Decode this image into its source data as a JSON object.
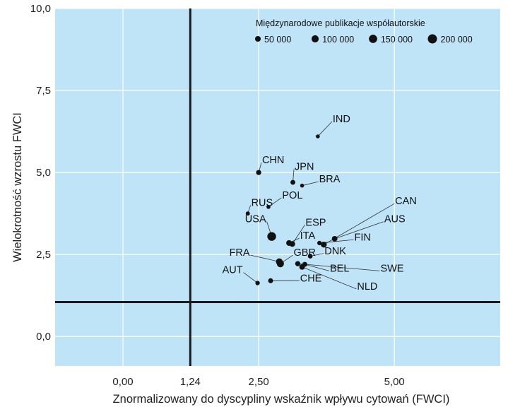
{
  "chart_data": {
    "type": "scatter",
    "title": "",
    "xlabel": "Znormalizowany do dyscypliny wskaźnik wpływu cytowań (FWCI)",
    "ylabel": "Wielokrotność wzrostu FWCI",
    "xlim": [
      -1.25,
      6.95
    ],
    "ylim": [
      -0.9,
      10.0
    ],
    "x_ticks": [
      {
        "value": 0.0,
        "label": "0,00"
      },
      {
        "value": 1.24,
        "label": "1,24"
      },
      {
        "value": 2.5,
        "label": "2,50"
      },
      {
        "value": 5.0,
        "label": "5,00"
      }
    ],
    "y_ticks": [
      {
        "value": 0.0,
        "label": "0,0"
      },
      {
        "value": 2.5,
        "label": "2,5"
      },
      {
        "value": 5.0,
        "label": "5,0"
      },
      {
        "value": 7.5,
        "label": "7,5"
      },
      {
        "value": 10.0,
        "label": "10,0"
      }
    ],
    "reference_lines": {
      "x": 1.24,
      "y": 1.05
    },
    "background": "#bfe3f7",
    "grid_color": "#ffffff",
    "point_color": "#111111",
    "legend": {
      "title": "Międzynarodowe publikacje współautorskie",
      "placement": "top-right",
      "entries": [
        {
          "label": "50 000",
          "value": 50000
        },
        {
          "label": "100 000",
          "value": 100000
        },
        {
          "label": "150 000",
          "value": 150000
        },
        {
          "label": "200 000",
          "value": 200000
        }
      ]
    },
    "points": [
      {
        "label": "IND",
        "x": 3.59,
        "y": 6.1,
        "size": 12000,
        "lx": 3.85,
        "ly": 6.55
      },
      {
        "label": "CHN",
        "x": 2.5,
        "y": 5.0,
        "size": 35000,
        "lx": 2.55,
        "ly": 5.3
      },
      {
        "label": "JPN",
        "x": 3.13,
        "y": 4.7,
        "size": 28000,
        "lx": 3.15,
        "ly": 5.1
      },
      {
        "label": "BRA",
        "x": 3.3,
        "y": 4.6,
        "size": 12000,
        "lx": 3.6,
        "ly": 4.72
      },
      {
        "label": "POL",
        "x": 2.68,
        "y": 3.95,
        "size": 12000,
        "lx": 2.92,
        "ly": 4.23
      },
      {
        "label": "RUS",
        "x": 2.3,
        "y": 3.75,
        "size": 15000,
        "lx": 2.35,
        "ly": 4.0
      },
      {
        "label": "CAN",
        "x": 3.7,
        "y": 2.8,
        "size": 55000,
        "lx": 5.0,
        "ly": 4.05
      },
      {
        "label": "ESP",
        "x": 3.12,
        "y": 2.82,
        "size": 45000,
        "lx": 3.35,
        "ly": 3.4
      },
      {
        "label": "AUS",
        "x": 3.9,
        "y": 2.98,
        "size": 45000,
        "lx": 4.8,
        "ly": 3.5
      },
      {
        "label": "USA",
        "x": 2.74,
        "y": 3.05,
        "size": 175000,
        "lx": 2.65,
        "ly": 3.5
      },
      {
        "label": "ITA",
        "x": 3.06,
        "y": 2.85,
        "size": 50000,
        "lx": 3.25,
        "ly": 3.0
      },
      {
        "label": "FIN",
        "x": 3.62,
        "y": 2.85,
        "size": 20000,
        "lx": 4.25,
        "ly": 2.95
      },
      {
        "label": "DNK",
        "x": 3.45,
        "y": 2.45,
        "size": 25000,
        "lx": 3.7,
        "ly": 2.53
      },
      {
        "label": "FRA",
        "x": 2.88,
        "y": 2.28,
        "size": 85000,
        "lx": 2.35,
        "ly": 2.48
      },
      {
        "label": "GBR",
        "x": 2.9,
        "y": 2.22,
        "size": 100000,
        "lx": 3.13,
        "ly": 2.48
      },
      {
        "label": "SWE",
        "x": 3.22,
        "y": 2.22,
        "size": 35000,
        "lx": 4.73,
        "ly": 2.0
      },
      {
        "label": "BEL",
        "x": 3.35,
        "y": 2.2,
        "size": 30000,
        "lx": 3.8,
        "ly": 2.0
      },
      {
        "label": "NLD",
        "x": 3.3,
        "y": 2.12,
        "size": 45000,
        "lx": 4.3,
        "ly": 1.45
      },
      {
        "label": "AUT",
        "x": 2.48,
        "y": 1.63,
        "size": 20000,
        "lx": 2.22,
        "ly": 1.95
      },
      {
        "label": "CHE",
        "x": 2.72,
        "y": 1.7,
        "size": 30000,
        "lx": 3.25,
        "ly": 1.7
      }
    ]
  }
}
